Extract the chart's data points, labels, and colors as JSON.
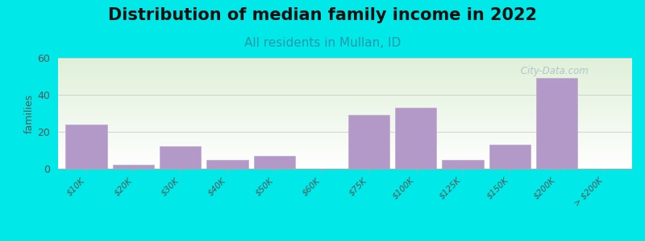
{
  "title": "Distribution of median family income in 2022",
  "subtitle": "All residents in Mullan, ID",
  "ylabel": "families",
  "categories": [
    "$10K",
    "$20K",
    "$30K",
    "$40K",
    "$50K",
    "$60K",
    "$75K",
    "$100K",
    "$125K",
    "$150K",
    "$200K",
    "> $200K"
  ],
  "values": [
    24,
    2,
    12,
    5,
    7,
    0,
    29,
    33,
    5,
    13,
    49,
    0
  ],
  "bar_color": "#b399c8",
  "bar_edge_color": "#c0aad0",
  "ylim": [
    0,
    60
  ],
  "yticks": [
    0,
    20,
    40,
    60
  ],
  "bg_color": "#00e8e8",
  "plot_bg_top_color": "#dff0d8",
  "plot_bg_bottom_color": "#ffffff",
  "title_fontsize": 15,
  "subtitle_fontsize": 11,
  "subtitle_color": "#2299aa",
  "watermark_text": " City-Data.com",
  "watermark_color": "#aabbc8"
}
